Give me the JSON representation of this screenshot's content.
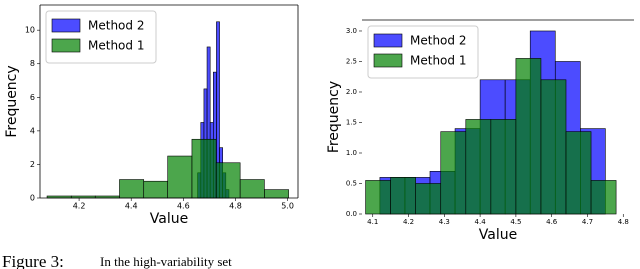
{
  "chart_data": [
    {
      "type": "histogram",
      "xlabel": "Value",
      "ylabel": "Frequency",
      "xlim": [
        4.05,
        5.04
      ],
      "ylim": [
        0,
        11.5
      ],
      "xticks": [
        4.2,
        4.4,
        4.6,
        4.8,
        {
          "value": 5,
          "label": "5.0"
        }
      ],
      "yticks": [
        0,
        2,
        4,
        6,
        8,
        10
      ],
      "legend": "upper left",
      "alpha": 0.7,
      "series": [
        {
          "name": "Method 2",
          "color": "#0000ff",
          "bins": [
            4.655,
            4.667,
            4.679,
            4.691,
            4.703,
            4.715,
            4.727,
            4.739,
            4.751,
            4.763,
            4.775
          ],
          "values": [
            1.5,
            4.5,
            6.5,
            9.0,
            4.5,
            7.5,
            10.5,
            3.0,
            1.5,
            0.5
          ]
        },
        {
          "name": "Method 1",
          "color": "#008000",
          "bins": [
            4.077,
            4.17,
            4.262,
            4.355,
            4.448,
            4.54,
            4.633,
            4.726,
            4.818,
            4.911,
            5.004
          ],
          "values": [
            0.12,
            0.12,
            0.12,
            1.1,
            1.0,
            2.5,
            3.5,
            2.1,
            1.1,
            0.5
          ]
        }
      ]
    },
    {
      "type": "histogram",
      "xlabel": "Value",
      "ylabel": "Frequency",
      "xlim": [
        4.07,
        4.83
      ],
      "ylim": [
        0,
        3.18
      ],
      "xticks": [
        4.1,
        4.2,
        4.3,
        4.4,
        4.5,
        4.6,
        4.7,
        4.8
      ],
      "yticks": [
        {
          "value": 0,
          "label": "0.0"
        },
        0.5,
        {
          "value": 1,
          "label": "1.0"
        },
        1.5,
        {
          "value": 2,
          "label": "2.0"
        },
        2.5,
        {
          "value": 3,
          "label": "3.0"
        }
      ],
      "legend": "upper left",
      "alpha": 0.7,
      "series": [
        {
          "name": "Method 2",
          "color": "#0000ff",
          "bins": [
            4.12,
            4.19,
            4.26,
            4.33,
            4.4,
            4.47,
            4.54,
            4.61,
            4.68,
            4.75
          ],
          "values": [
            0.6,
            0.6,
            0.7,
            1.4,
            2.2,
            2.2,
            3.0,
            2.5,
            1.4
          ]
        },
        {
          "name": "Method 1",
          "color": "#008000",
          "bins": [
            4.08,
            4.15,
            4.22,
            4.29,
            4.36,
            4.43,
            4.5,
            4.57,
            4.64,
            4.71,
            4.78
          ],
          "values": [
            0.55,
            0.6,
            0.5,
            1.35,
            1.55,
            1.55,
            2.55,
            2.2,
            1.35,
            0.55
          ]
        }
      ]
    }
  ],
  "caption": {
    "label": "Figure 3:",
    "text": "In the high-variability set"
  }
}
